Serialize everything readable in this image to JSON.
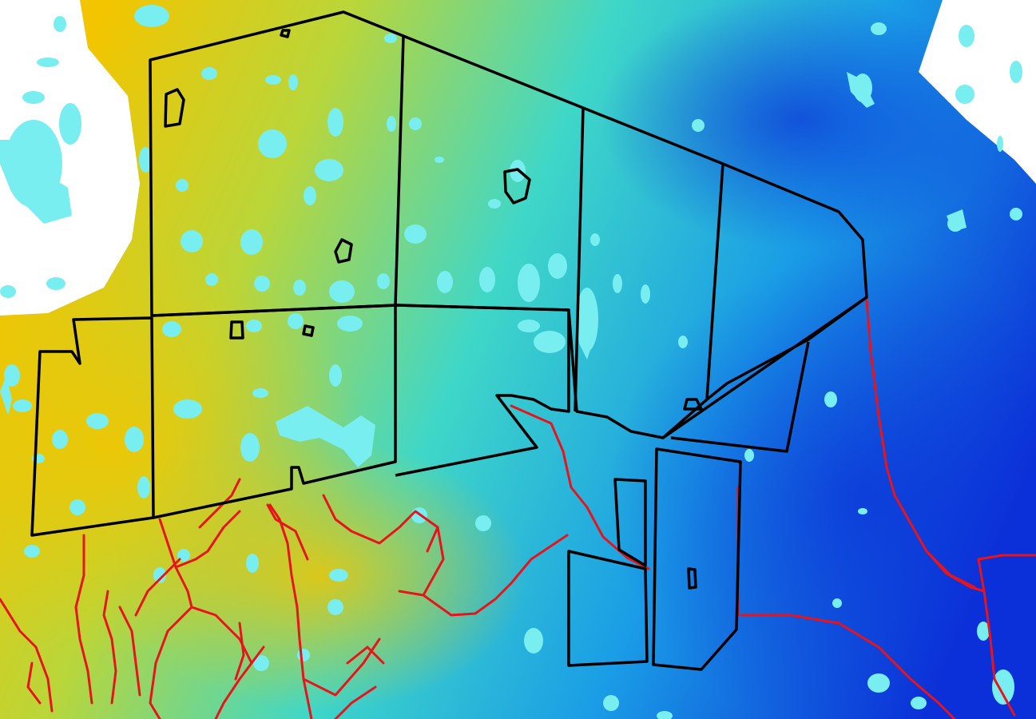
{
  "map": {
    "type": "lidar-elevation-hillshade",
    "colors": {
      "elevation_high": "#f2c500",
      "elevation_mid_high": "#b9d63a",
      "elevation_mid": "#3fd7c8",
      "elevation_mid_low": "#1a9de6",
      "elevation_low": "#0b2fd8",
      "water_surface": "#79eef0",
      "no_data": "#ffffff",
      "field_boundary": "#000000",
      "drainage_channel": "#e8141c"
    },
    "layers": [
      {
        "name": "elevation",
        "kind": "raster"
      },
      {
        "name": "surface-water",
        "kind": "polygons"
      },
      {
        "name": "field-boundaries",
        "kind": "outlines",
        "count": 14
      },
      {
        "name": "drainage-network",
        "kind": "lines"
      }
    ]
  }
}
